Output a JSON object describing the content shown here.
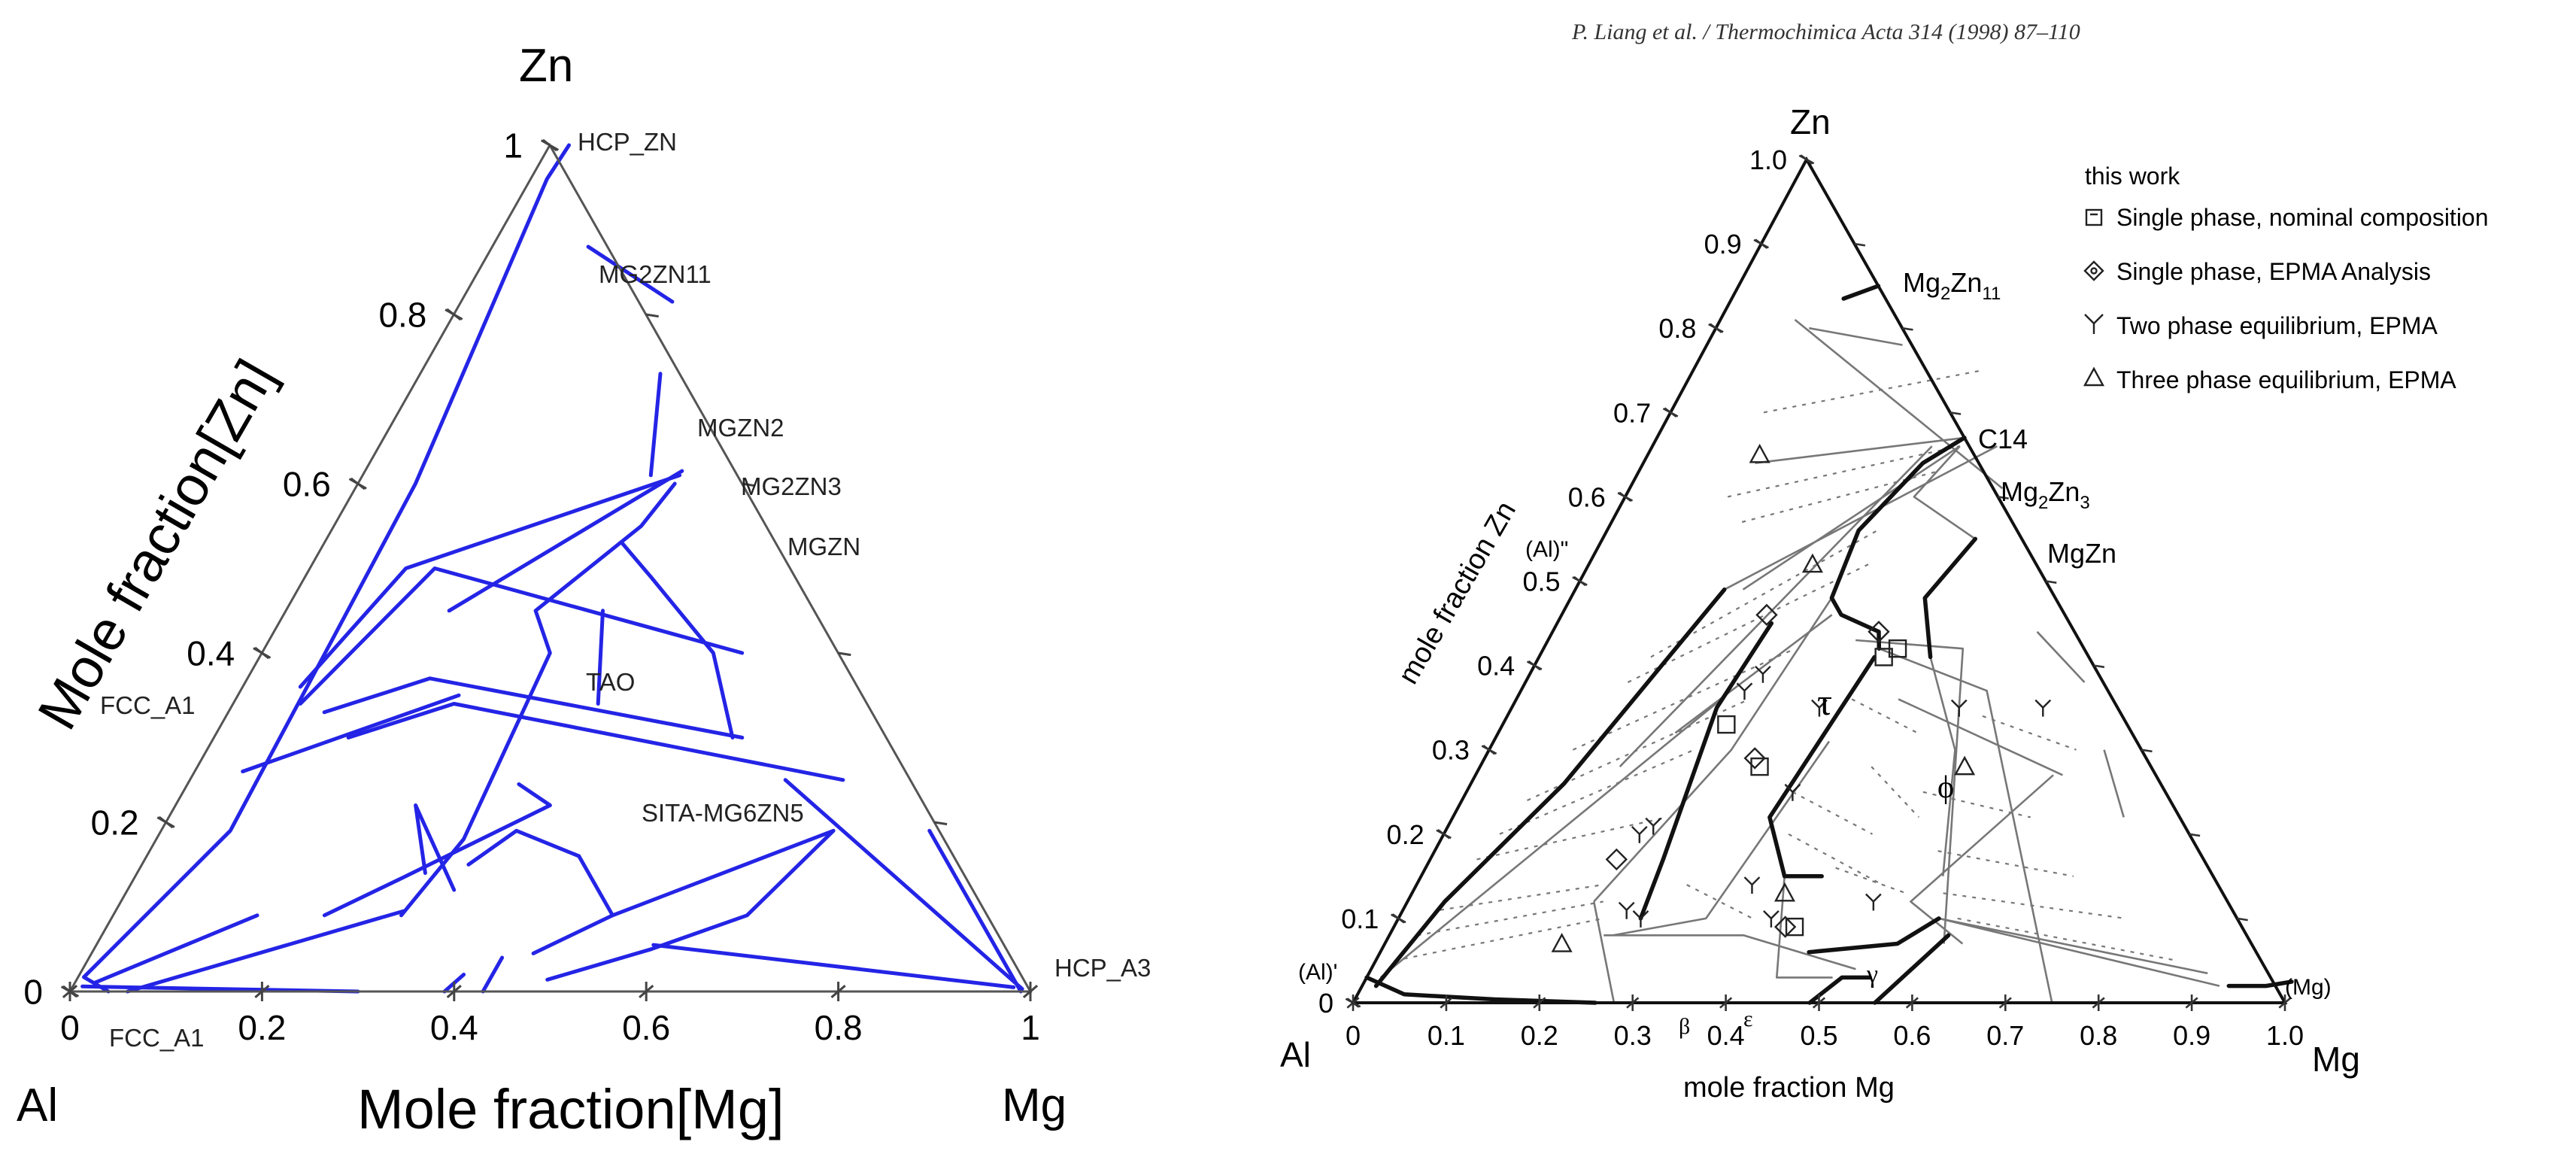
{
  "colors": {
    "blue": "#2424e6",
    "black": "#111111",
    "grey": "#8c8c8c",
    "background": "#ffffff"
  },
  "left_diagram": {
    "vertex_labels": {
      "top": "Zn",
      "left": "Al",
      "right": "Mg"
    },
    "axis_title_y": "Mole fraction[Zn]",
    "axis_title_x": "Mole fraction[Mg]",
    "zn_ticks": [
      {
        "value": 0,
        "label": "0"
      },
      {
        "value": 0.2,
        "label": "0.2"
      },
      {
        "value": 0.4,
        "label": "0.4"
      },
      {
        "value": 0.6,
        "label": "0.6"
      },
      {
        "value": 0.8,
        "label": "0.8"
      },
      {
        "value": 1,
        "label": "1"
      }
    ],
    "mg_ticks": [
      {
        "value": 0,
        "label": "0"
      },
      {
        "value": 0.2,
        "label": "0.2"
      },
      {
        "value": 0.4,
        "label": "0.4"
      },
      {
        "value": 0.6,
        "label": "0.6"
      },
      {
        "value": 0.8,
        "label": "0.8"
      },
      {
        "value": 1,
        "label": "1"
      }
    ],
    "phase_labels": [
      {
        "text": "HCP_ZN"
      },
      {
        "text": "MG2ZN11"
      },
      {
        "text": "MGZN2"
      },
      {
        "text": "MG2ZN3"
      },
      {
        "text": "MGZN"
      },
      {
        "text": "TAO"
      },
      {
        "text": "SITA-MG6ZN5"
      },
      {
        "text": "FCC_A1"
      },
      {
        "text": "FCC_A1"
      },
      {
        "text": "HCP_A3"
      }
    ]
  },
  "right_diagram": {
    "citation": "P. Liang et al. / Thermochimica Acta 314 (1998) 87–110",
    "vertex_labels": {
      "top": "Zn",
      "left": "Al",
      "right": "Mg"
    },
    "axis_title_y": "mole fraction Zn",
    "axis_title_x": "mole fraction Mg",
    "zn_ticks": [
      {
        "value": 0,
        "label": "0"
      },
      {
        "value": 0.1,
        "label": "0.1"
      },
      {
        "value": 0.2,
        "label": "0.2"
      },
      {
        "value": 0.3,
        "label": "0.3"
      },
      {
        "value": 0.4,
        "label": "0.4"
      },
      {
        "value": 0.5,
        "label": "0.5"
      },
      {
        "value": 0.6,
        "label": "0.6"
      },
      {
        "value": 0.7,
        "label": "0.7"
      },
      {
        "value": 0.8,
        "label": "0.8"
      },
      {
        "value": 0.9,
        "label": "0.9"
      },
      {
        "value": 1.0,
        "label": "1.0"
      }
    ],
    "mg_ticks": [
      {
        "value": 0,
        "label": "0"
      },
      {
        "value": 0.1,
        "label": "0.1"
      },
      {
        "value": 0.2,
        "label": "0.2"
      },
      {
        "value": 0.3,
        "label": "0.3"
      },
      {
        "value": 0.4,
        "label": "0.4"
      },
      {
        "value": 0.5,
        "label": "0.5"
      },
      {
        "value": 0.6,
        "label": "0.6"
      },
      {
        "value": 0.7,
        "label": "0.7"
      },
      {
        "value": 0.8,
        "label": "0.8"
      },
      {
        "value": 0.9,
        "label": "0.9"
      },
      {
        "value": 1.0,
        "label": "1.0"
      }
    ],
    "phase_labels": {
      "mg2zn11": "Mg2Zn11",
      "c14": "C14",
      "mg2zn3": "Mg2Zn3",
      "mgzn": "MgZn",
      "al_dprime": "(Al)\"",
      "al_prime": "(Al)'",
      "mg": "(Mg)",
      "tau": "τ",
      "phi": "ϕ",
      "gamma": "γ",
      "beta": "β",
      "epsilon": "ε"
    },
    "legend": {
      "title": "this work",
      "items": [
        {
          "symbol": "square",
          "label": "Single phase, nominal composition"
        },
        {
          "symbol": "diamond",
          "label": "Single phase, EPMA Analysis"
        },
        {
          "symbol": "y-mark",
          "label": "Two phase equilibrium, EPMA"
        },
        {
          "symbol": "triangle",
          "label": "Three phase equilibrium, EPMA"
        }
      ]
    }
  }
}
